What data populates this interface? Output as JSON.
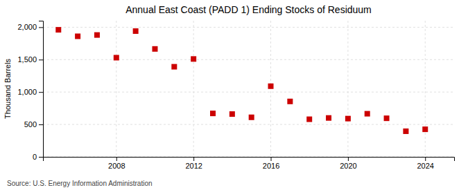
{
  "chart_data": {
    "type": "scatter",
    "title": "Annual East Coast (PADD 1) Ending Stocks of Residuum",
    "ylabel": "Thousand Barrels",
    "source": "Source: U.S. Energy Information Administration",
    "x": [
      2005,
      2006,
      2007,
      2008,
      2009,
      2010,
      2011,
      2012,
      2013,
      2014,
      2015,
      2016,
      2017,
      2018,
      2019,
      2020,
      2021,
      2022,
      2023,
      2024
    ],
    "values": [
      1960,
      1860,
      1880,
      1530,
      1940,
      1665,
      1390,
      1510,
      670,
      660,
      610,
      1090,
      855,
      580,
      600,
      590,
      665,
      595,
      395,
      425
    ],
    "color": "#cc0000",
    "marker": "square",
    "xlim": [
      2004.2,
      2025.5
    ],
    "xticks": [
      2008,
      2012,
      2016,
      2020,
      2024
    ],
    "ylim": [
      0,
      2100
    ],
    "yticks": [
      0,
      500,
      {
        "value": 1000,
        "label": "1,000"
      },
      {
        "value": 1500,
        "label": "1,500"
      },
      {
        "value": 2000,
        "label": "2,000"
      }
    ],
    "grid": true
  }
}
